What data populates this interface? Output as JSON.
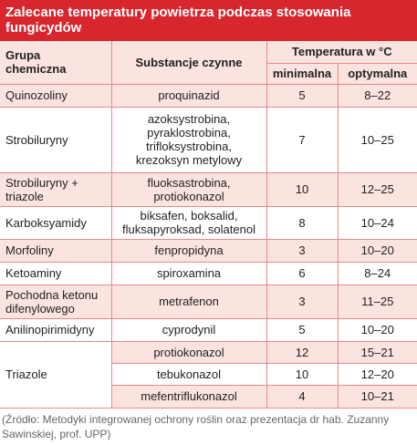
{
  "title": "Zalecane temperatury powietrza podczas stosowania fungicydów",
  "header": {
    "group": "Grupa\nchemiczna",
    "substance": "Substancje czynne",
    "temperature": "Temperatura w °C",
    "min": "minimalna",
    "opt": "optymalna"
  },
  "groups": [
    {
      "name": "Quinozoliny",
      "rows": [
        [
          "proquinazid",
          5,
          "8–22"
        ]
      ]
    },
    {
      "name": "Strobiluryny",
      "rows": [
        [
          "azoksystrobina,\npyraklostrobina,\ntrifloksystrobina,\nkrezoksyn metylowy",
          7,
          "10–25"
        ]
      ]
    },
    {
      "name": "Strobiluryny +\ntriazole",
      "rows": [
        [
          "fluoksastrobina,\nprotiokonazol",
          10,
          "12–25"
        ]
      ]
    },
    {
      "name": "Karboksyamidy",
      "rows": [
        [
          "biksafen, boksalid,\nfluksapyroksad, solatenol",
          8,
          "10–24"
        ]
      ]
    },
    {
      "name": "Morfoliny",
      "rows": [
        [
          "fenpropidyna",
          3,
          "10–20"
        ]
      ]
    },
    {
      "name": "Ketoaminy",
      "rows": [
        [
          "spiroxamina",
          6,
          "8–24"
        ]
      ]
    },
    {
      "name": "Pochodna ketonu\ndifenylowego",
      "rows": [
        [
          "metrafenon",
          3,
          "11–25"
        ]
      ]
    },
    {
      "name": "Anilinopirimidyny",
      "rows": [
        [
          "cyprodynil",
          5,
          "10–20"
        ]
      ]
    },
    {
      "name": "Triazole",
      "rows": [
        [
          "protiokonazol",
          12,
          "15–21"
        ],
        [
          "tebukonazol",
          10,
          "12–20"
        ],
        [
          "mefentriflukonazol",
          4,
          "10–21"
        ]
      ]
    }
  ],
  "source": "(Źródło: Metodyki integrowanej ochrony roślin oraz  prezentacja dr hab. Zuzanny Sawinskiej, prof. UPP)"
}
